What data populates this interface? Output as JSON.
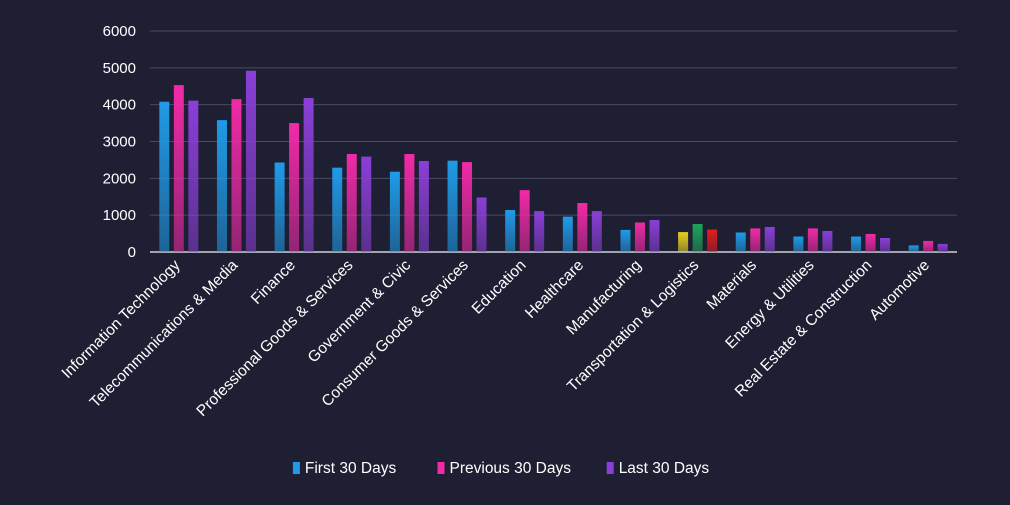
{
  "chart_data": {
    "type": "bar",
    "title": "",
    "xlabel": "",
    "ylabel": "",
    "ylim": [
      0,
      6000
    ],
    "yticks": [
      0,
      1000,
      2000,
      3000,
      4000,
      5000,
      6000
    ],
    "grid": true,
    "legend_position": "bottom",
    "categories": [
      "Information Technology",
      "Telecommunications & Media",
      "Finance",
      "Professional Goods & Services",
      "Government & Civic",
      "Consumer Goods & Services",
      "Education",
      "Healthcare",
      "Manufacturing",
      "Transportation & Logistics",
      "Materials",
      "Energy & Utilities",
      "Real Estate & Construction",
      "Automotive"
    ],
    "series": [
      {
        "name": "First 30 Days",
        "color": "#1f9be8",
        "values": [
          4080,
          3580,
          2430,
          2290,
          2180,
          2480,
          1140,
          960,
          600,
          540,
          530,
          420,
          420,
          180
        ]
      },
      {
        "name": "Previous 30 Days",
        "color": "#f22aa8",
        "values": [
          4530,
          4150,
          3500,
          2660,
          2660,
          2440,
          1680,
          1330,
          800,
          760,
          640,
          640,
          490,
          300
        ]
      },
      {
        "name": "Last 30 Days",
        "color": "#8b3fd8",
        "values": [
          4110,
          4920,
          4180,
          2590,
          2470,
          1480,
          1110,
          1110,
          870,
          610,
          680,
          570,
          380,
          220
        ]
      }
    ],
    "point_colors": {
      "Transportation & Logistics": [
        "#e8d21e",
        "#1fa35a",
        "#e01e1e"
      ]
    }
  }
}
